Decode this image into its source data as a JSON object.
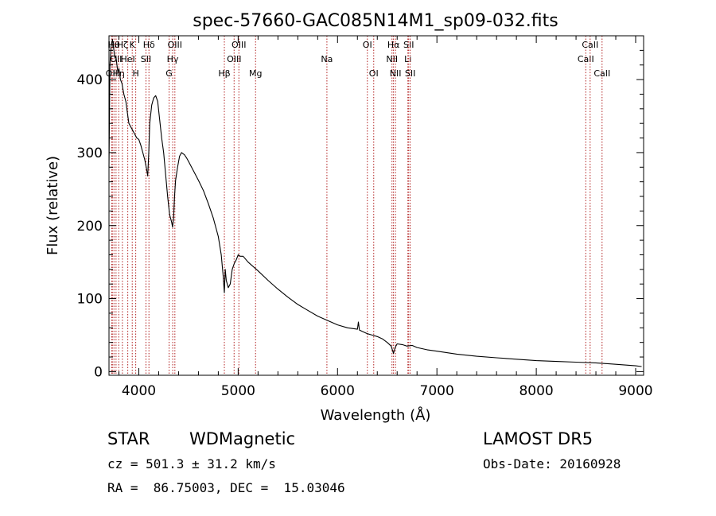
{
  "chart_data": {
    "type": "line",
    "title": "spec-57660-GAC085N14M1_sp09-032.fits",
    "xlabel": "Wavelength (Å)",
    "ylabel": "Flux (relative)",
    "xlim": [
      3700,
      9080
    ],
    "ylim": [
      -5,
      460
    ],
    "xticks": [
      4000,
      5000,
      6000,
      7000,
      8000,
      9000
    ],
    "yticks": [
      0,
      100,
      200,
      300,
      400
    ],
    "grid": false,
    "line_color": "#000000",
    "marker_color": "#b22222",
    "series": [
      {
        "x": [
          3700,
          3710,
          3720,
          3735,
          3750,
          3760,
          3770,
          3780,
          3790,
          3800,
          3815,
          3830,
          3850,
          3870,
          3890,
          3900,
          3920,
          3940,
          3960,
          3980,
          4000,
          4020,
          4040,
          4060,
          4075,
          4090,
          4100,
          4110,
          4130,
          4150,
          4170,
          4190,
          4210,
          4230,
          4250,
          4270,
          4290,
          4310,
          4330,
          4340,
          4350,
          4360,
          4370,
          4390,
          4410,
          4430,
          4460,
          4480,
          4500,
          4550,
          4600,
          4650,
          4700,
          4750,
          4800,
          4830,
          4850,
          4861,
          4870,
          4880,
          4900,
          4920,
          4940,
          4960,
          4980,
          5000,
          5020,
          5050,
          5100,
          5200,
          5300,
          5400,
          5500,
          5600,
          5700,
          5800,
          5900,
          6000,
          6100,
          6200,
          6210,
          6220,
          6250,
          6300,
          6350,
          6400,
          6450,
          6500,
          6540,
          6563,
          6580,
          6600,
          6650,
          6700,
          6750,
          6800,
          6900,
          7000,
          7200,
          7400,
          7600,
          7800,
          8000,
          8200,
          8400,
          8600,
          8800,
          9000,
          9060
        ],
        "values": [
          280,
          420,
          445,
          455,
          440,
          430,
          432,
          420,
          410,
          415,
          400,
          395,
          380,
          370,
          350,
          340,
          335,
          330,
          325,
          320,
          318,
          310,
          300,
          290,
          280,
          268,
          300,
          340,
          365,
          375,
          378,
          370,
          345,
          320,
          300,
          270,
          240,
          215,
          205,
          198,
          210,
          240,
          262,
          280,
          295,
          300,
          297,
          293,
          288,
          275,
          262,
          248,
          230,
          210,
          185,
          160,
          130,
          108,
          140,
          125,
          115,
          120,
          140,
          148,
          153,
          160,
          158,
          158,
          150,
          138,
          125,
          113,
          102,
          92,
          84,
          76,
          70,
          64,
          60,
          58,
          68,
          57,
          55,
          52,
          50,
          48,
          45,
          40,
          35,
          25,
          33,
          38,
          37,
          35,
          36,
          33,
          30,
          28,
          24,
          21,
          19,
          17,
          15,
          14,
          13,
          12,
          10,
          8,
          7
        ]
      }
    ],
    "line_markers": [
      {
        "x": 3727,
        "label": "OII",
        "row": 2
      },
      {
        "x": 3734,
        "label": "Hι",
        "row": 0
      },
      {
        "x": 3750,
        "label": "Hθ",
        "row": 0
      },
      {
        "x": 3771,
        "label": "OII",
        "row": 1
      },
      {
        "x": 3798,
        "label": "Hη",
        "row": 2
      },
      {
        "x": 3835,
        "label": "Hζ",
        "row": 0
      },
      {
        "x": 3889,
        "label": "HeI",
        "row": 1
      },
      {
        "x": 3934,
        "label": "K",
        "row": 0
      },
      {
        "x": 3969,
        "label": "H",
        "row": 2
      },
      {
        "x": 4072,
        "label": "SII",
        "row": 1
      },
      {
        "x": 4102,
        "label": "Hδ",
        "row": 0
      },
      {
        "x": 4305,
        "label": "G",
        "row": 2
      },
      {
        "x": 4341,
        "label": "Hγ",
        "row": 1
      },
      {
        "x": 4363,
        "label": "OIII",
        "row": 0
      },
      {
        "x": 4861,
        "label": "Hβ",
        "row": 2
      },
      {
        "x": 4959,
        "label": "OIII",
        "row": 1
      },
      {
        "x": 5007,
        "label": "OIII",
        "row": 0
      },
      {
        "x": 5175,
        "label": "Mg",
        "row": 2
      },
      {
        "x": 5893,
        "label": "Na",
        "row": 1
      },
      {
        "x": 6300,
        "label": "OI",
        "row": 0
      },
      {
        "x": 6364,
        "label": "OI",
        "row": 2
      },
      {
        "x": 6548,
        "label": "NII",
        "row": 1
      },
      {
        "x": 6563,
        "label": "Hα",
        "row": 0
      },
      {
        "x": 6583,
        "label": "NII",
        "row": 2
      },
      {
        "x": 6708,
        "label": "Li",
        "row": 1
      },
      {
        "x": 6716,
        "label": "SII",
        "row": 0
      },
      {
        "x": 6731,
        "label": "SII",
        "row": 2
      },
      {
        "x": 8498,
        "label": "CaII",
        "row": 1
      },
      {
        "x": 8542,
        "label": "CaII",
        "row": 0
      },
      {
        "x": 8662,
        "label": "CaII",
        "row": 2
      }
    ]
  },
  "info": {
    "class": "STAR",
    "subclass": "WDMagnetic",
    "survey": "LAMOST DR5",
    "redshift": "cz = 501.3 ± 31.2 km/s",
    "obs_date": "Obs-Date: 20160928",
    "coords": "RA =  86.75003, DEC =  15.03046"
  }
}
